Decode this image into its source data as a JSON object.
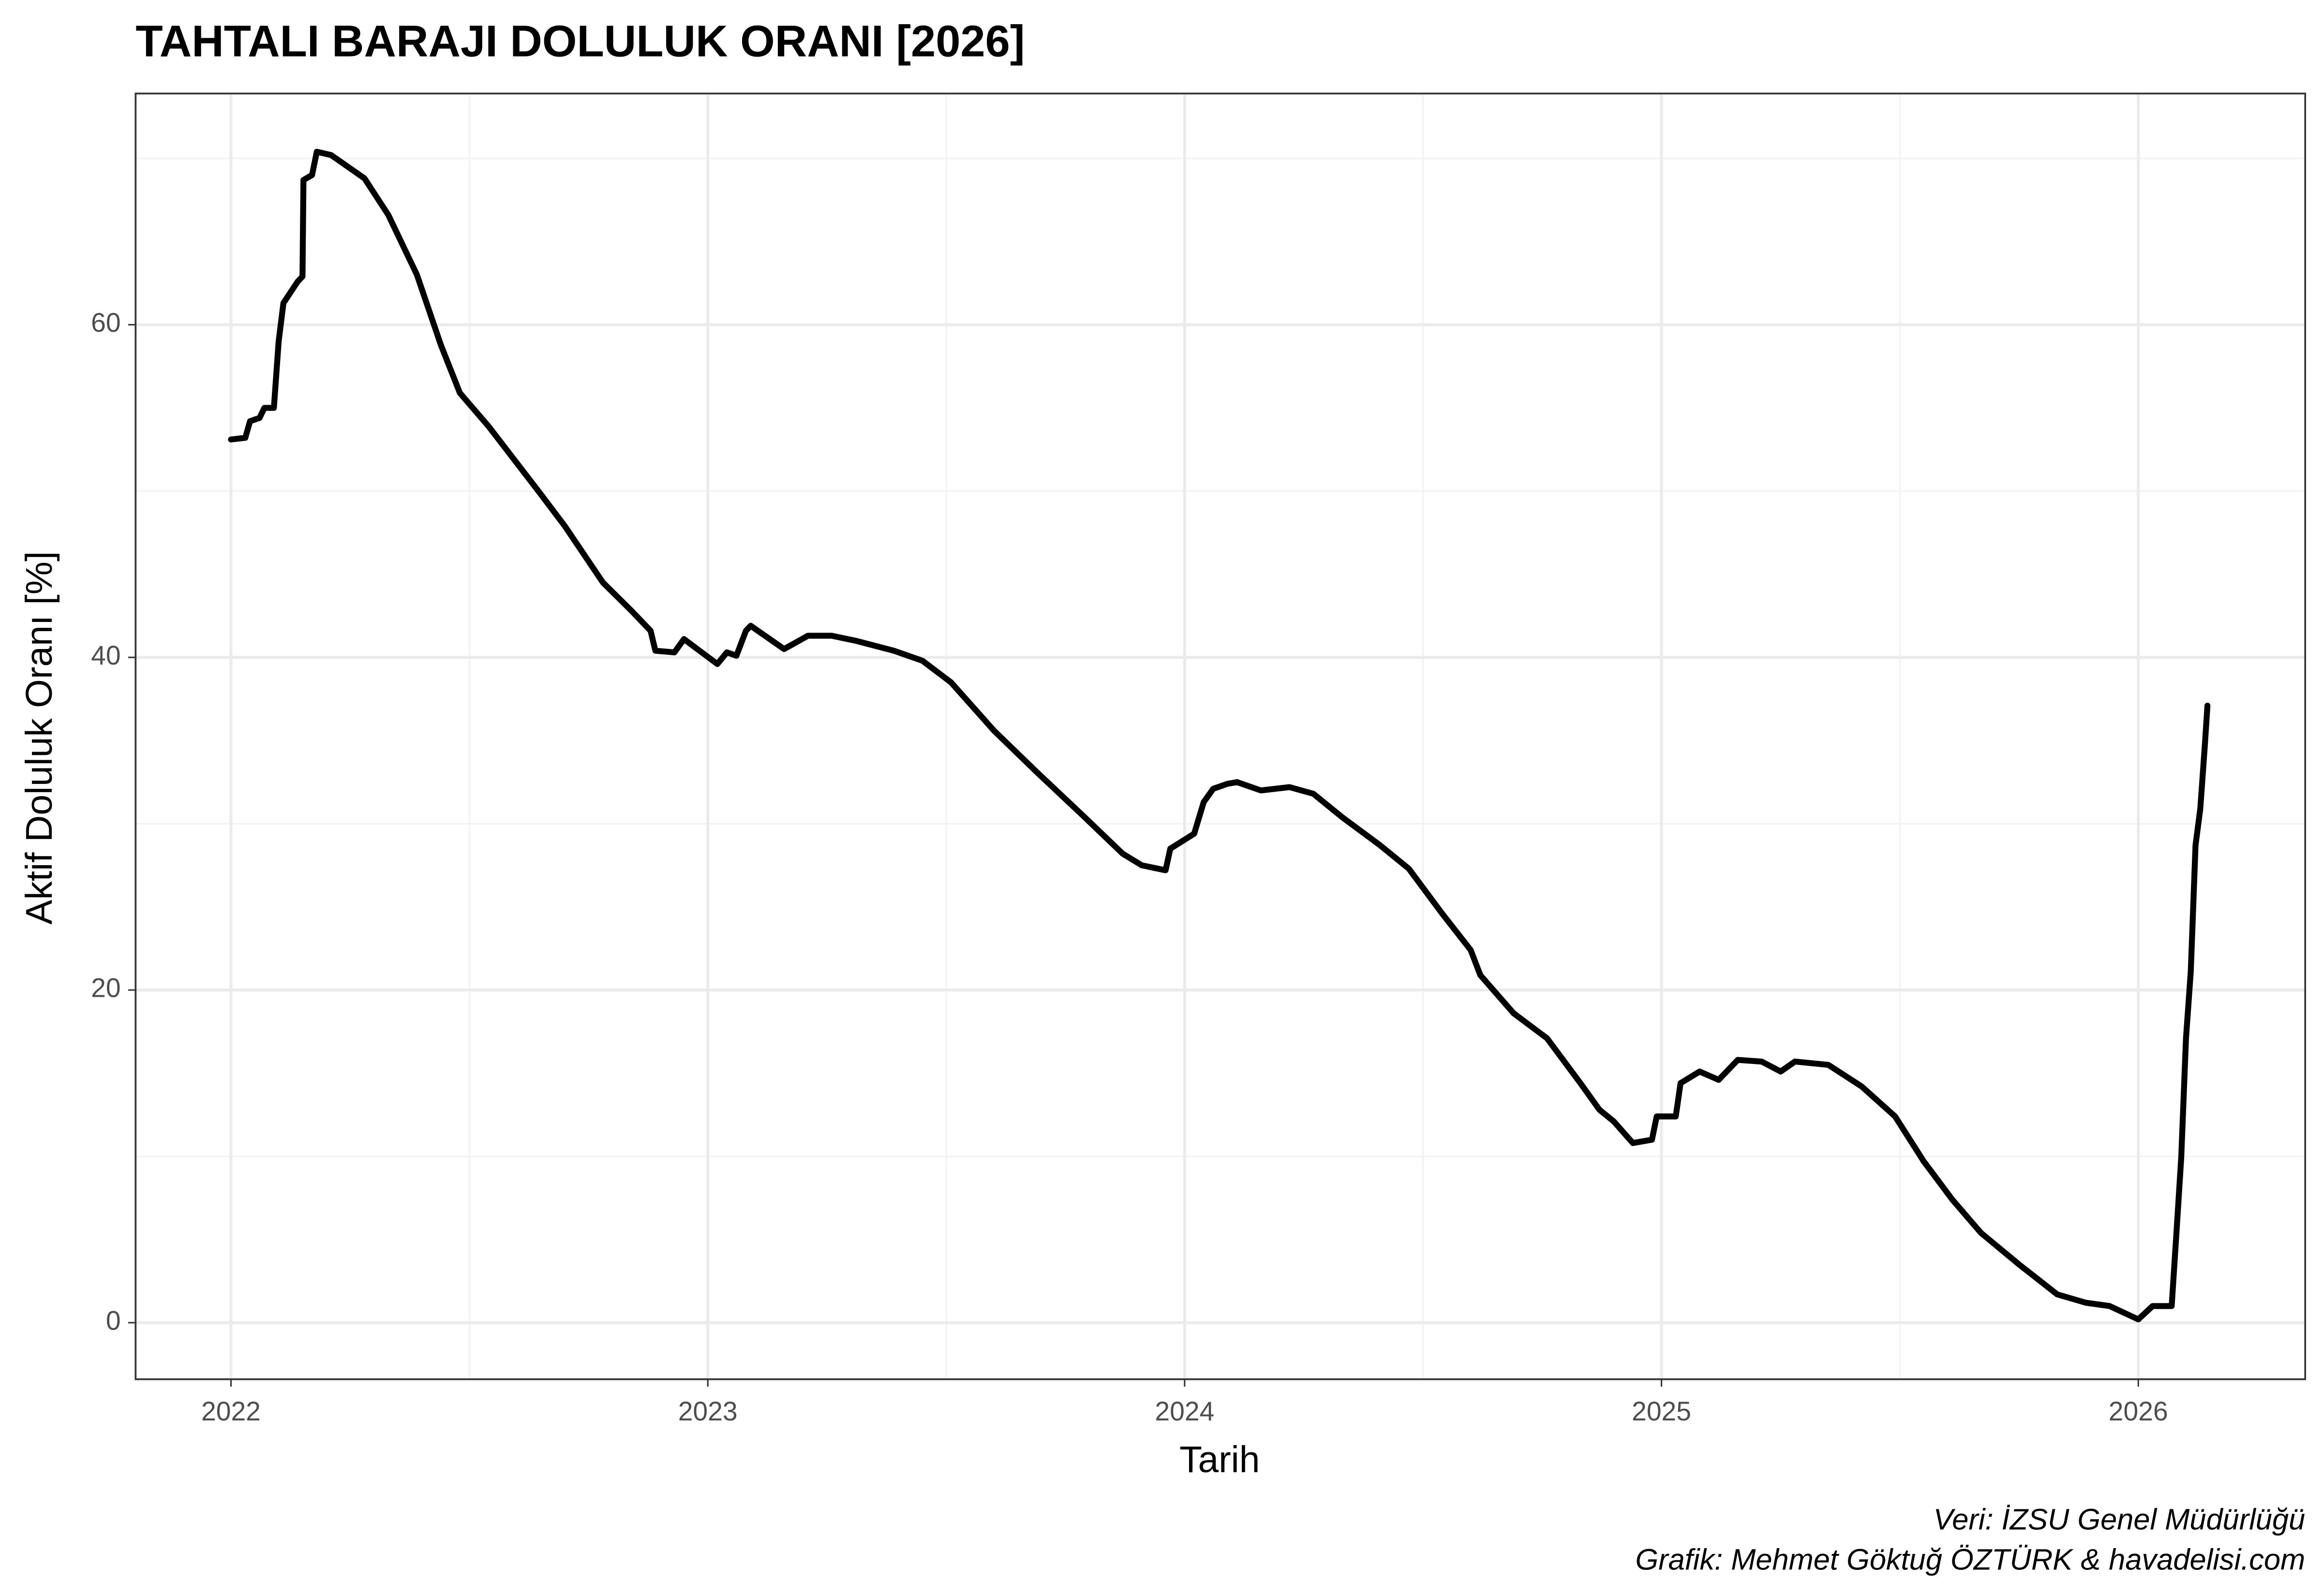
{
  "chart_data": {
    "type": "line",
    "title": "TAHTALI BARAJI DOLULUK ORANI [2026]",
    "x_label": "Tarih",
    "y_label": "Aktif Doluluk Oranı [%]",
    "caption": [
      "Veri: İZSU Genel Müdürlüğü",
      "Grafik: Mehmet Göktuğ ÖZTÜRK & havadelisi.com"
    ],
    "xlim": [
      2021.8,
      2026.35
    ],
    "xticks": [
      2022,
      2023,
      2024,
      2025,
      2026
    ],
    "x_minor_ticks": [
      2022.5,
      2023.5,
      2024.5,
      2025.5
    ],
    "ylim": [
      -3.4,
      73.9
    ],
    "yticks": [
      0,
      20,
      40,
      60
    ],
    "y_minor_ticks": [
      10,
      30,
      50,
      70
    ],
    "grid": true,
    "series": [
      {
        "color": "#000000",
        "x": [
          2022.0,
          2022.03,
          2022.04,
          2022.06,
          2022.07,
          2022.09,
          2022.1,
          2022.11,
          2022.14,
          2022.15,
          2022.152,
          2022.17,
          2022.18,
          2022.21,
          2022.28,
          2022.33,
          2022.39,
          2022.44,
          2022.48,
          2022.54,
          2022.65,
          2022.7,
          2022.78,
          2022.84,
          2022.88,
          2022.89,
          2022.93,
          2022.95,
          2023.02,
          2023.04,
          2023.06,
          2023.08,
          2023.09,
          2023.16,
          2023.21,
          2023.26,
          2023.31,
          2023.39,
          2023.45,
          2023.51,
          2023.6,
          2023.69,
          2023.79,
          2023.87,
          2023.91,
          2023.96,
          2023.97,
          2024.02,
          2024.04,
          2024.06,
          2024.09,
          2024.11,
          2024.16,
          2024.22,
          2024.27,
          2024.33,
          2024.41,
          2024.47,
          2024.54,
          2024.6,
          2024.62,
          2024.69,
          2024.76,
          2024.83,
          2024.87,
          2024.9,
          2024.94,
          2024.98,
          2024.99,
          2025.03,
          2025.04,
          2025.08,
          2025.12,
          2025.16,
          2025.21,
          2025.25,
          2025.28,
          2025.35,
          2025.42,
          2025.49,
          2025.55,
          2025.61,
          2025.67,
          2025.75,
          2025.83,
          2025.89,
          2025.94,
          2026.0,
          2026.03,
          2026.07,
          2026.08,
          2026.09,
          2026.1,
          2026.11,
          2026.12,
          2026.13,
          2026.14,
          2026.145
        ],
        "values": [
          53.1,
          53.2,
          54.2,
          54.4,
          55.0,
          55.0,
          59.0,
          61.3,
          62.6,
          62.9,
          68.7,
          69.0,
          70.4,
          70.2,
          68.8,
          66.6,
          63.0,
          58.8,
          55.9,
          53.9,
          49.8,
          47.9,
          44.5,
          42.8,
          41.6,
          40.4,
          40.3,
          41.1,
          39.6,
          40.3,
          40.1,
          41.6,
          41.9,
          40.5,
          41.3,
          41.3,
          41.0,
          40.4,
          39.8,
          38.5,
          35.6,
          33.1,
          30.4,
          28.2,
          27.5,
          27.2,
          28.5,
          29.4,
          31.3,
          32.1,
          32.4,
          32.5,
          32.0,
          32.2,
          31.8,
          30.4,
          28.7,
          27.3,
          24.6,
          22.4,
          20.9,
          18.6,
          17.1,
          14.4,
          12.8,
          12.1,
          10.8,
          11.0,
          12.4,
          12.4,
          14.4,
          15.1,
          14.6,
          15.8,
          15.7,
          15.1,
          15.7,
          15.5,
          14.2,
          12.4,
          9.7,
          7.4,
          5.4,
          3.5,
          1.7,
          1.2,
          1.0,
          0.2,
          1.0,
          1.0,
          5.4,
          9.9,
          17.1,
          21.1,
          28.7,
          30.9,
          34.9,
          37.1
        ]
      }
    ]
  }
}
